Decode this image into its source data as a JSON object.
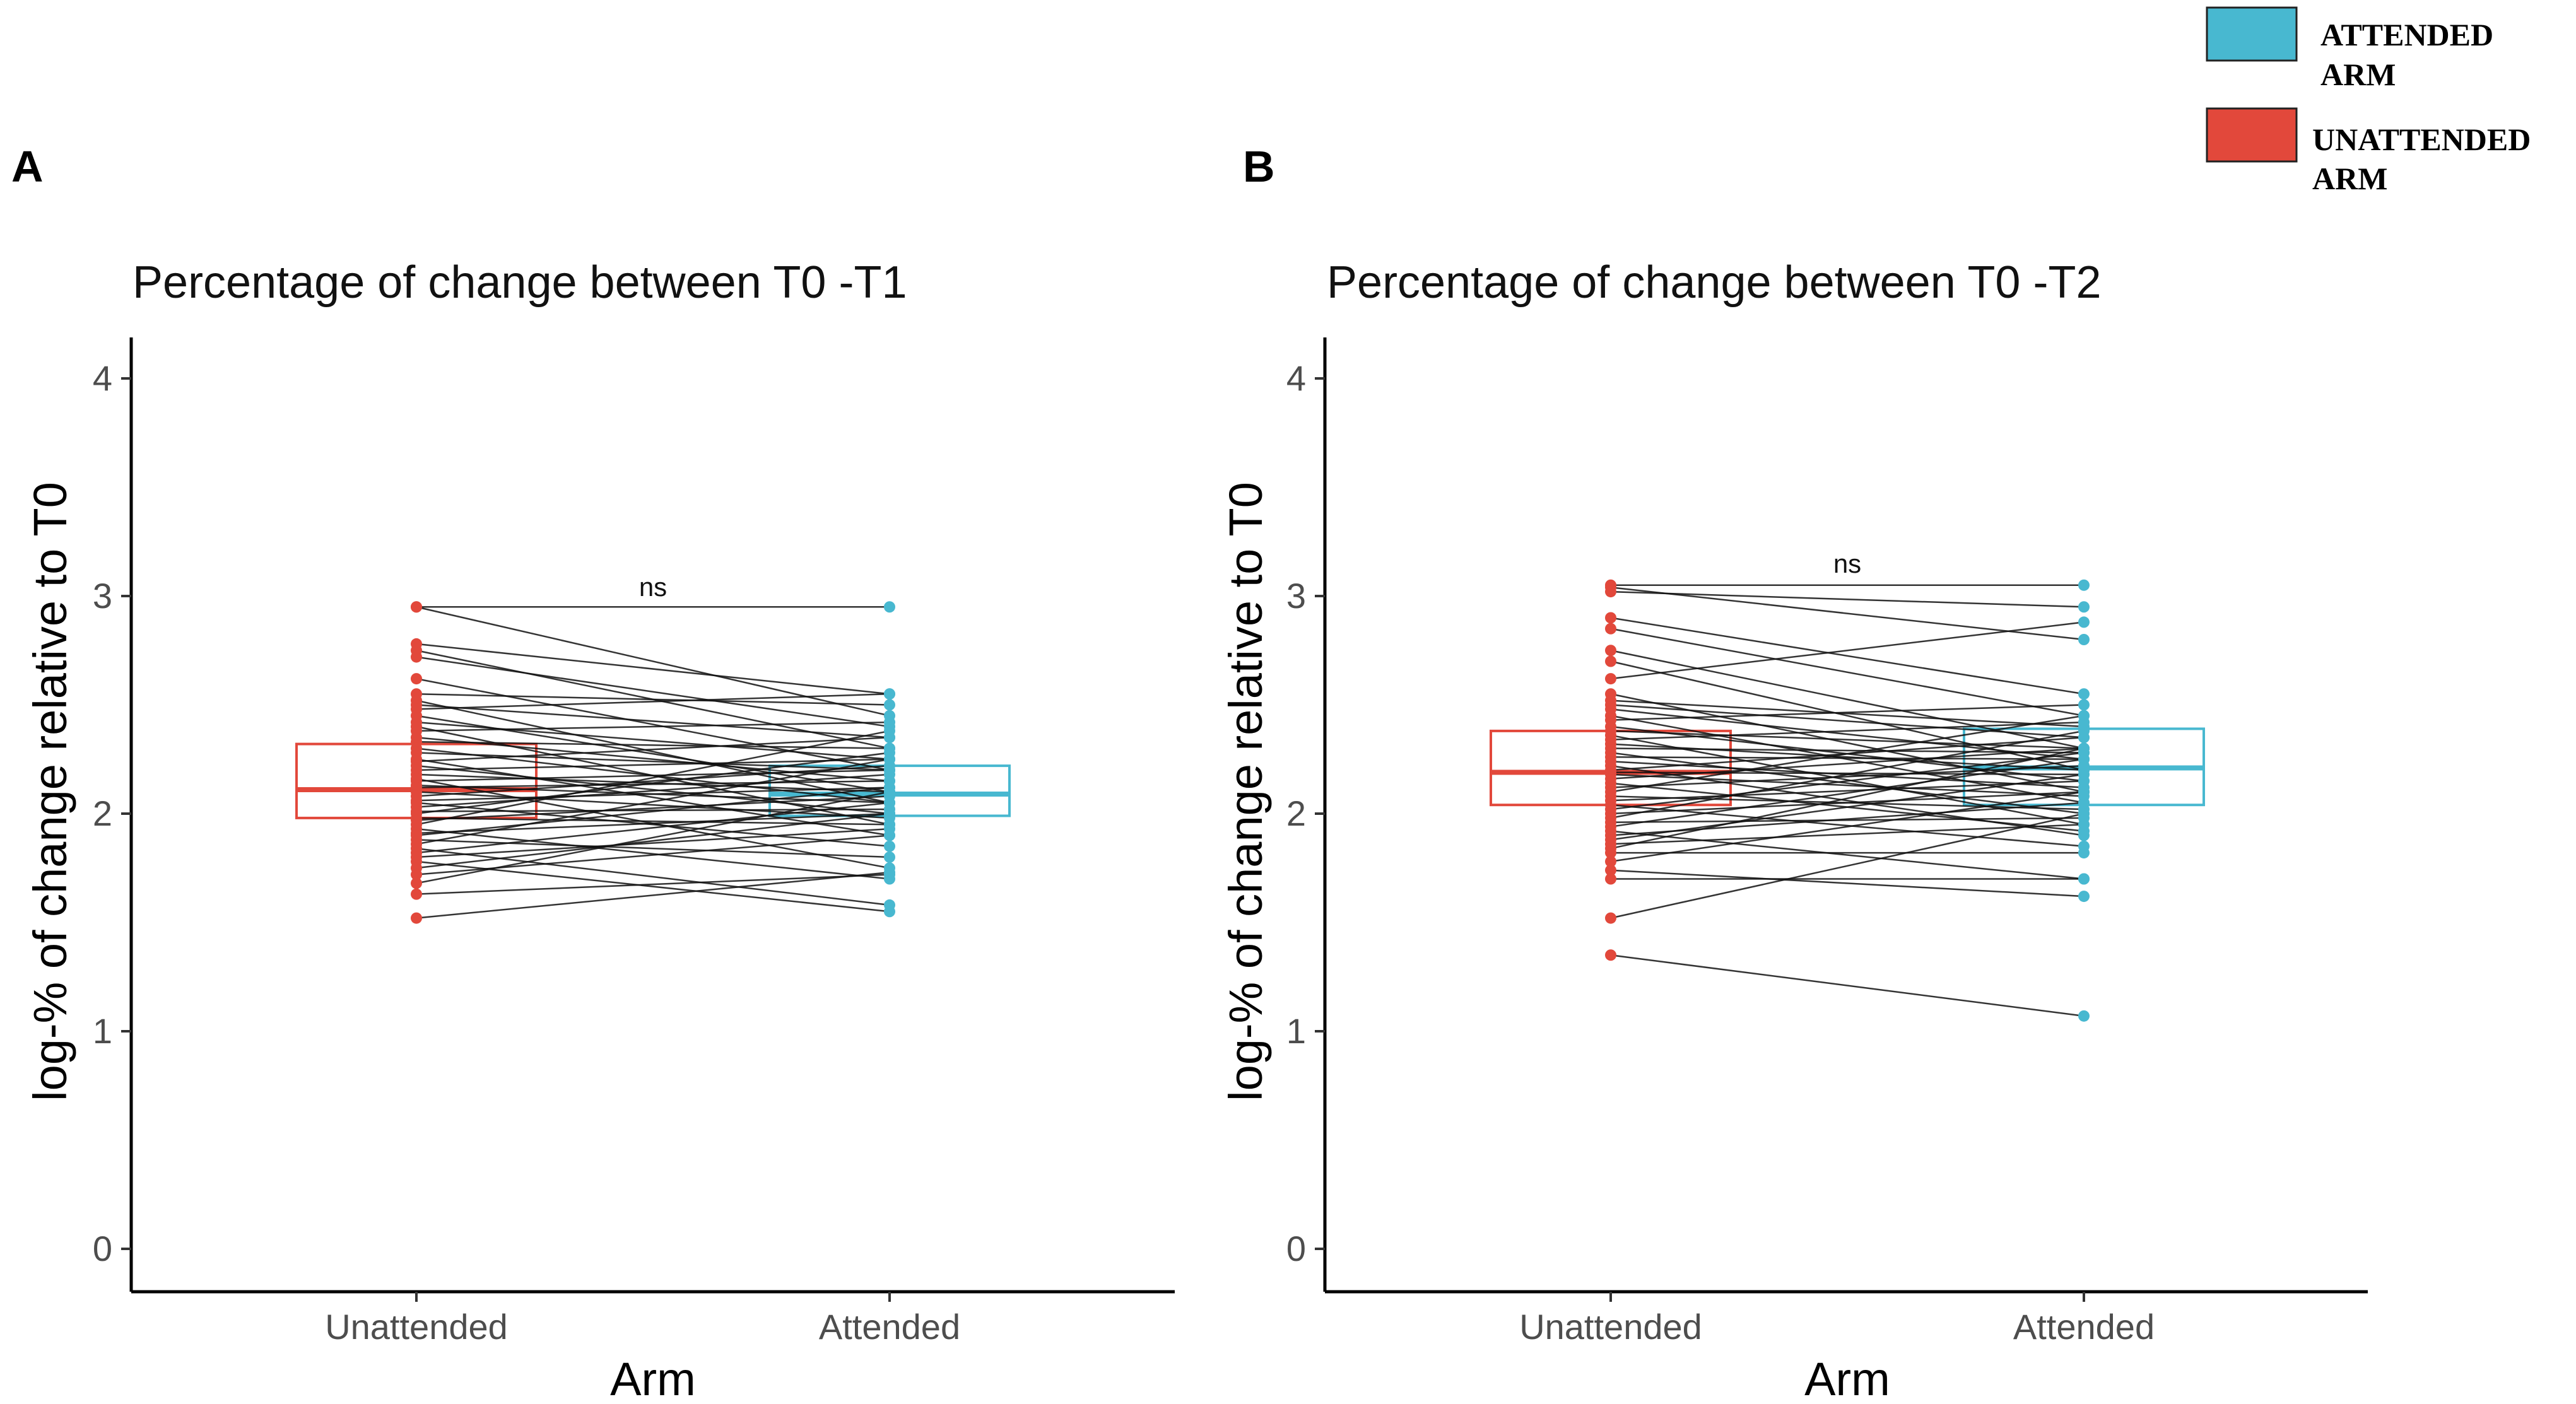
{
  "legend": {
    "entries": [
      {
        "lines": [
          "ATTENDED",
          "ARM"
        ],
        "color": "#48b8d0"
      },
      {
        "lines": [
          "UNATTENDED",
          "ARM"
        ],
        "color": "#e2483b"
      }
    ]
  },
  "colors": {
    "unattended": "#e2483b",
    "attended": "#48b8d0",
    "pair_line": "#111111",
    "axis": "#000000"
  },
  "chart_data": [
    {
      "type": "box_paired",
      "panel": "A",
      "title": "Percentage of change between T0 -T1",
      "xlabel": "Arm",
      "ylabel": "log-% of change relative to T0",
      "ylim": [
        0,
        4
      ],
      "yticks": [
        0,
        1,
        2,
        3,
        4
      ],
      "categories": [
        "Unattended",
        "Attended"
      ],
      "annotation": "ns",
      "boxes": [
        {
          "name": "Unattended",
          "q1": 1.98,
          "median": 2.11,
          "q3": 2.32
        },
        {
          "name": "Attended",
          "q1": 1.99,
          "median": 2.09,
          "q3": 2.22
        }
      ],
      "pairs": [
        [
          2.95,
          2.95
        ],
        [
          2.95,
          2.45
        ],
        [
          2.78,
          2.55
        ],
        [
          2.75,
          2.3
        ],
        [
          2.72,
          2.4
        ],
        [
          2.62,
          2.2
        ],
        [
          2.55,
          2.5
        ],
        [
          2.52,
          2.05
        ],
        [
          2.5,
          2.35
        ],
        [
          2.48,
          2.55
        ],
        [
          2.45,
          2.1
        ],
        [
          2.42,
          2.25
        ],
        [
          2.4,
          1.95
        ],
        [
          2.38,
          2.42
        ],
        [
          2.35,
          2.15
        ],
        [
          2.33,
          2.3
        ],
        [
          2.3,
          2.05
        ],
        [
          2.28,
          2.2
        ],
        [
          2.25,
          1.9
        ],
        [
          2.24,
          2.35
        ],
        [
          2.22,
          2.0
        ],
        [
          2.2,
          2.25
        ],
        [
          2.18,
          2.1
        ],
        [
          2.16,
          1.75
        ],
        [
          2.15,
          2.2
        ],
        [
          2.13,
          2.05
        ],
        [
          2.12,
          2.15
        ],
        [
          2.1,
          1.98
        ],
        [
          2.08,
          2.22
        ],
        [
          2.06,
          2.12
        ],
        [
          2.05,
          1.85
        ],
        [
          2.03,
          2.18
        ],
        [
          2.01,
          2.02
        ],
        [
          2.0,
          2.28
        ],
        [
          1.98,
          1.95
        ],
        [
          1.97,
          2.08
        ],
        [
          1.95,
          2.38
        ],
        [
          1.93,
          1.7
        ],
        [
          1.91,
          2.0
        ],
        [
          1.9,
          2.12
        ],
        [
          1.88,
          1.8
        ],
        [
          1.86,
          2.25
        ],
        [
          1.84,
          1.58
        ],
        [
          1.82,
          2.05
        ],
        [
          1.8,
          1.93
        ],
        [
          1.78,
          1.55
        ],
        [
          1.75,
          2.0
        ],
        [
          1.72,
          1.9
        ],
        [
          1.68,
          2.1
        ],
        [
          1.63,
          1.72
        ],
        [
          1.52,
          1.73
        ]
      ]
    },
    {
      "type": "box_paired",
      "panel": "B",
      "title": "Percentage of change between T0 -T2",
      "xlabel": "Arm",
      "ylabel": "log-% of change relative to T0",
      "ylim": [
        0,
        4
      ],
      "yticks": [
        0,
        1,
        2,
        3,
        4
      ],
      "categories": [
        "Unattended",
        "Attended"
      ],
      "annotation": "ns",
      "boxes": [
        {
          "name": "Unattended",
          "q1": 2.04,
          "median": 2.19,
          "q3": 2.38
        },
        {
          "name": "Attended",
          "q1": 2.04,
          "median": 2.21,
          "q3": 2.39
        }
      ],
      "pairs": [
        [
          3.05,
          3.05
        ],
        [
          3.04,
          2.8
        ],
        [
          3.02,
          2.95
        ],
        [
          2.9,
          2.55
        ],
        [
          2.85,
          2.45
        ],
        [
          2.75,
          2.3
        ],
        [
          2.7,
          2.2
        ],
        [
          2.62,
          2.88
        ],
        [
          2.55,
          2.1
        ],
        [
          2.52,
          2.4
        ],
        [
          2.5,
          2.35
        ],
        [
          2.48,
          2.25
        ],
        [
          2.45,
          2.05
        ],
        [
          2.43,
          2.5
        ],
        [
          2.4,
          2.15
        ],
        [
          2.38,
          2.3
        ],
        [
          2.36,
          1.95
        ],
        [
          2.34,
          2.42
        ],
        [
          2.32,
          2.2
        ],
        [
          2.3,
          2.28
        ],
        [
          2.28,
          2.0
        ],
        [
          2.26,
          2.25
        ],
        [
          2.24,
          2.12
        ],
        [
          2.22,
          1.9
        ],
        [
          2.2,
          2.35
        ],
        [
          2.19,
          2.18
        ],
        [
          2.18,
          2.08
        ],
        [
          2.16,
          2.3
        ],
        [
          2.14,
          1.92
        ],
        [
          2.12,
          2.22
        ],
        [
          2.1,
          2.45
        ],
        [
          2.08,
          2.02
        ],
        [
          2.06,
          2.15
        ],
        [
          2.04,
          1.85
        ],
        [
          2.02,
          2.28
        ],
        [
          2.0,
          2.1
        ],
        [
          1.98,
          2.38
        ],
        [
          1.96,
          1.98
        ],
        [
          1.94,
          2.25
        ],
        [
          1.92,
          1.7
        ],
        [
          1.9,
          2.05
        ],
        [
          1.88,
          2.18
        ],
        [
          1.86,
          1.95
        ],
        [
          1.84,
          2.3
        ],
        [
          1.82,
          1.82
        ],
        [
          1.78,
          2.1
        ],
        [
          1.74,
          1.62
        ],
        [
          1.7,
          1.7
        ],
        [
          1.52,
          2.0
        ],
        [
          1.35,
          1.07
        ]
      ]
    }
  ]
}
